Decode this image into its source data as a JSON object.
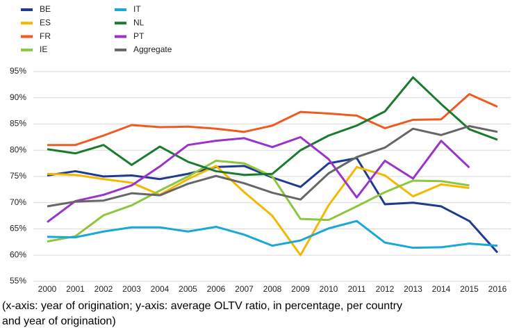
{
  "chart_data": {
    "type": "line",
    "categories": [
      "2000",
      "2001",
      "2002",
      "2003",
      "2004",
      "2005",
      "2006",
      "2007",
      "2008",
      "2009",
      "2010",
      "2011",
      "2012",
      "2013",
      "2014",
      "2015",
      "2016"
    ],
    "series": [
      {
        "name": "BE",
        "color": "#1f3a8f",
        "values": [
          75.2,
          76,
          75,
          75.2,
          74.5,
          75.5,
          76.8,
          77,
          74.8,
          73,
          77.5,
          78.5,
          69.7,
          70,
          69.3,
          66.5,
          60.5
        ]
      },
      {
        "name": "ES",
        "color": "#f5b800",
        "values": [
          75.5,
          75.3,
          74.5,
          73.8,
          71.5,
          74.5,
          77,
          72,
          67.5,
          60,
          69.5,
          76.8,
          75.2,
          71.2,
          73.5,
          72.8,
          null
        ]
      },
      {
        "name": "FR",
        "color": "#f05a22",
        "values": [
          81,
          81,
          82.8,
          84.8,
          84.4,
          84.5,
          84.1,
          83.5,
          84.7,
          87.3,
          87,
          86.6,
          84.2,
          85.8,
          85.9,
          90.7,
          88.3
        ]
      },
      {
        "name": "IE",
        "color": "#8cc63f",
        "values": [
          62.6,
          63.6,
          67.6,
          69.5,
          72.3,
          75,
          78,
          77.5,
          75,
          66.9,
          66.7,
          69.3,
          72,
          74.2,
          74.1,
          73.3,
          null
        ]
      },
      {
        "name": "IT",
        "color": "#1aa7d9",
        "values": [
          63.5,
          63.4,
          64.5,
          65.3,
          65.3,
          64.5,
          65.4,
          63.9,
          61.8,
          62.8,
          65.1,
          66.5,
          62.4,
          61.4,
          61.5,
          62.2,
          61.8
        ]
      },
      {
        "name": "NL",
        "color": "#1a7a2e",
        "values": [
          80.2,
          79.4,
          81,
          77.2,
          80.7,
          77.8,
          76,
          75.3,
          75.5,
          80,
          82.8,
          84.7,
          87.4,
          93.9,
          88.8,
          84,
          82
        ]
      },
      {
        "name": "PT",
        "color": "#9933cc",
        "values": [
          66.3,
          70.3,
          71.5,
          73.3,
          76.9,
          81,
          81.8,
          82.3,
          80.6,
          82.5,
          78.3,
          71,
          78,
          74.6,
          81.8,
          76.7,
          null
        ]
      },
      {
        "name": "Aggregate",
        "color": "#666666",
        "values": [
          69.3,
          70.2,
          70.4,
          71.8,
          71.4,
          73.6,
          75.1,
          73.7,
          71.9,
          70.6,
          75.6,
          78.7,
          80.5,
          84.1,
          82.9,
          84.6,
          83.5
        ]
      }
    ],
    "ylim": [
      55,
      95
    ],
    "yticks": [
      {
        "value": 55,
        "label": "55%"
      },
      {
        "value": 60,
        "label": "60%"
      },
      {
        "value": 65,
        "label": "65%"
      },
      {
        "value": 70,
        "label": "70%"
      },
      {
        "value": 75,
        "label": "75%"
      },
      {
        "value": 80,
        "label": "80%"
      },
      {
        "value": 85,
        "label": "85%"
      },
      {
        "value": 90,
        "label": "90%"
      },
      {
        "value": 95,
        "label": "95%"
      }
    ],
    "grid": true,
    "legend": "top-left",
    "caption_lines": [
      "(x-axis: year of origination; y-axis: average OLTV ratio, in percentage, per country",
      "and year of origination)"
    ]
  }
}
